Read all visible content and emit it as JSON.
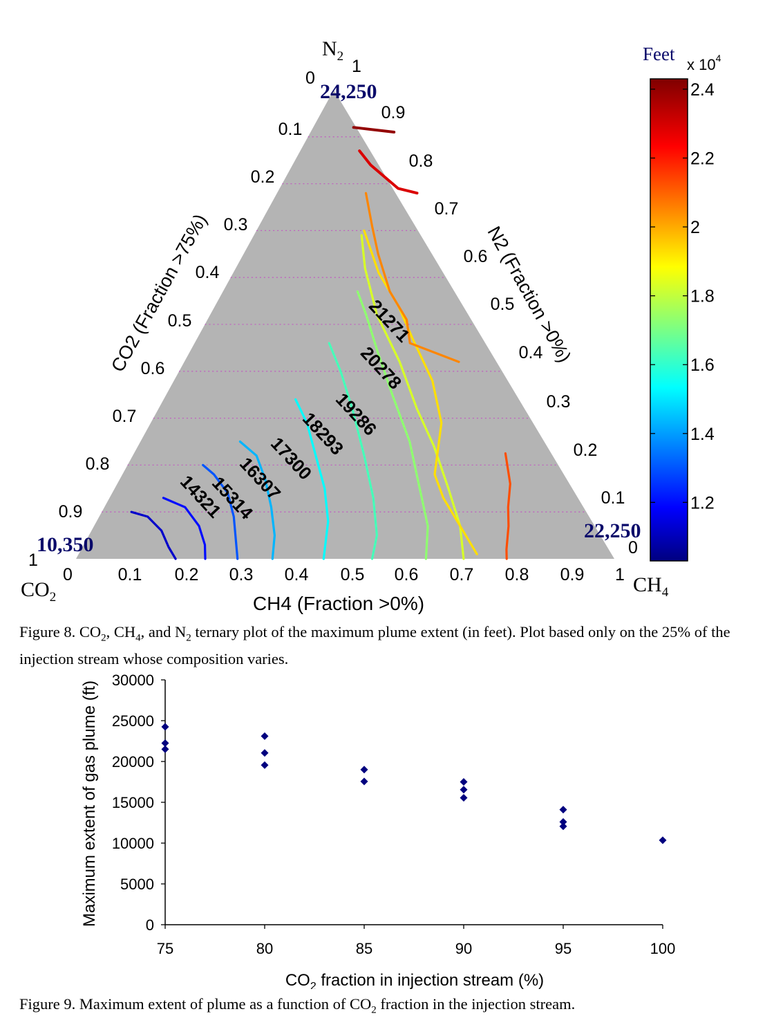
{
  "figure8": {
    "caption": {
      "prefix": "Figure 8. CO",
      "s1": "2",
      "mid1": ", CH",
      "s2": "4",
      "mid2": ", and N",
      "s3": "2",
      "rest": " ternary plot of the maximum plume extent (in feet). Plot based only on the 25% of the injection stream whose composition varies."
    },
    "chart_data": {
      "type": "ternary-contour",
      "corners": {
        "top": {
          "base": "N",
          "sub": "2"
        },
        "left": {
          "base": "CO",
          "sub": "2"
        },
        "right": {
          "base": "CH",
          "sub": "4"
        }
      },
      "axis_labels": {
        "left": "CO2 (Fraction >75%)",
        "right": "N2 (Fraction >0%)",
        "bottom": "CH4 (Fraction >0%)"
      },
      "ticks": {
        "bottom": [
          "0",
          "0.1",
          "0.2",
          "0.3",
          "0.4",
          "0.5",
          "0.6",
          "0.7",
          "0.8",
          "0.9",
          "1"
        ],
        "left": [
          "0",
          "0.1",
          "0.2",
          "0.3",
          "0.4",
          "0.5",
          "0.6",
          "0.7",
          "0.8",
          "0.9",
          "1"
        ],
        "right": [
          "1",
          "0.9",
          "0.8",
          "0.7",
          "0.6",
          "0.5",
          "0.4",
          "0.3",
          "0.2",
          "0.1",
          "0"
        ]
      },
      "corner_values": {
        "top": "24,250",
        "left": "10,350",
        "right": "22,250"
      },
      "contour_levels": [
        "14321",
        "15314",
        "16307",
        "17300",
        "18293",
        "19286",
        "20278",
        "21271"
      ],
      "colorbar": {
        "title": "Feet",
        "multiplier": "x 10",
        "exponent": "4",
        "ticks": [
          "2.4",
          "2.2",
          "2",
          "1.8",
          "1.6",
          "1.4",
          "1.2"
        ],
        "range": [
          1.03,
          2.43
        ]
      }
    }
  },
  "figure9": {
    "caption": {
      "prefix": "Figure 9. Maximum extent of plume as a function of CO",
      "s1": "2",
      "rest": " fraction in the injection stream."
    },
    "chart_data": {
      "type": "scatter",
      "xlabel": {
        "base": "CO",
        "sub": "2",
        "rest": " fraction in injection stream (%)"
      },
      "ylabel": "Maximum extent of gas plume (ft)",
      "xlim": [
        75,
        100
      ],
      "ylim": [
        0,
        30000
      ],
      "xticks": [
        "75",
        "80",
        "85",
        "90",
        "95",
        "100"
      ],
      "yticks": [
        "0",
        "5000",
        "10000",
        "15000",
        "20000",
        "25000",
        "30000"
      ],
      "marker_color": "#00007f",
      "points": [
        [
          75,
          24250
        ],
        [
          75,
          22250
        ],
        [
          75,
          21500
        ],
        [
          80,
          23100
        ],
        [
          80,
          21050
        ],
        [
          80,
          19550
        ],
        [
          85,
          19000
        ],
        [
          85,
          17550
        ],
        [
          90,
          17500
        ],
        [
          90,
          16550
        ],
        [
          90,
          15550
        ],
        [
          95,
          14100
        ],
        [
          95,
          12600
        ],
        [
          95,
          12050
        ],
        [
          100,
          10350
        ]
      ]
    }
  }
}
